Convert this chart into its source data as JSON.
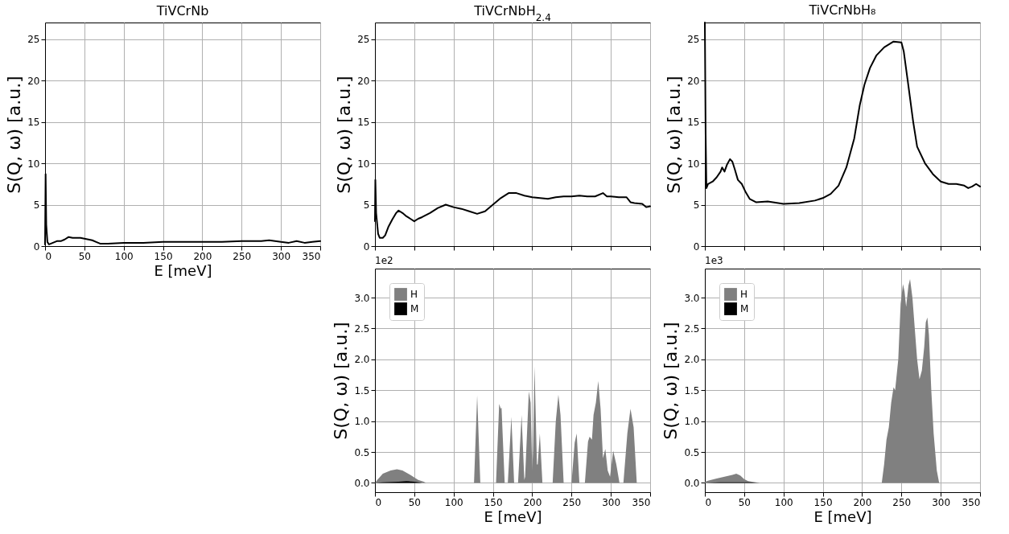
{
  "chart_data": [
    {
      "type": "line",
      "title": "TiVCrNb",
      "xlabel": "E [meV]",
      "ylabel": "S(Q, ω) [a.u.]",
      "xlim": [
        0,
        350
      ],
      "ylim": [
        0,
        27
      ],
      "xticks": [
        0,
        50,
        100,
        150,
        200,
        250,
        300,
        350
      ],
      "yticks": [
        0,
        5,
        10,
        15,
        20,
        25
      ],
      "grid": true,
      "series": [
        {
          "color": "#000000",
          "x": [
            0,
            0.7,
            1.5,
            3,
            5,
            10,
            15,
            20,
            25,
            30,
            35,
            40,
            45,
            50,
            55,
            60,
            65,
            70,
            80,
            100,
            125,
            150,
            175,
            200,
            225,
            250,
            275,
            285,
            300,
            310,
            320,
            330,
            340,
            350
          ],
          "values": [
            0.2,
            8.7,
            2.6,
            0.5,
            0.2,
            0.4,
            0.6,
            0.6,
            0.8,
            1.1,
            1.0,
            1.0,
            1.0,
            0.9,
            0.8,
            0.7,
            0.5,
            0.3,
            0.3,
            0.4,
            0.4,
            0.5,
            0.5,
            0.5,
            0.5,
            0.6,
            0.6,
            0.7,
            0.5,
            0.4,
            0.6,
            0.4,
            0.5,
            0.6
          ]
        }
      ]
    },
    {
      "type": "line",
      "title": "TiVCrNbH$_{2.4}$",
      "ylabel": "S(Q, ω) [a.u.]",
      "xlim": [
        0,
        350
      ],
      "ylim": [
        0,
        27
      ],
      "xticks": [
        0,
        50,
        100,
        150,
        200,
        250,
        300,
        350
      ],
      "yticks": [
        0,
        5,
        10,
        15,
        20,
        25
      ],
      "grid": true,
      "tick_labels": "y",
      "series": [
        {
          "color": "#000000",
          "x": [
            0,
            0.5,
            1.5,
            4,
            6,
            10,
            13,
            17,
            22,
            27,
            30,
            35,
            40,
            45,
            50,
            55,
            60,
            70,
            80,
            90,
            100,
            110,
            120,
            130,
            140,
            150,
            160,
            170,
            180,
            190,
            200,
            210,
            220,
            230,
            240,
            250,
            260,
            270,
            280,
            290,
            295,
            300,
            310,
            320,
            325,
            330,
            340,
            345,
            350
          ],
          "values": [
            3,
            8,
            4,
            1.5,
            1.0,
            1.0,
            1.3,
            2.3,
            3.2,
            4.0,
            4.3,
            4.0,
            3.6,
            3.3,
            3.0,
            3.3,
            3.5,
            4.0,
            4.6,
            5.0,
            4.7,
            4.5,
            4.2,
            3.9,
            4.2,
            5.0,
            5.8,
            6.4,
            6.4,
            6.1,
            5.9,
            5.8,
            5.7,
            5.9,
            6.0,
            6.0,
            6.1,
            6.0,
            6.0,
            6.4,
            6.0,
            6.0,
            5.9,
            5.9,
            5.3,
            5.2,
            5.1,
            4.7,
            4.8
          ]
        }
      ]
    },
    {
      "type": "line",
      "title": "TiVCrNbH₈",
      "ylabel": "S(Q, ω) [a.u.]",
      "xlim": [
        0,
        350
      ],
      "ylim": [
        0,
        27
      ],
      "xticks": [
        0,
        50,
        100,
        150,
        200,
        250,
        300,
        350
      ],
      "yticks": [
        0,
        5,
        10,
        15,
        20,
        25
      ],
      "grid": true,
      "tick_labels": "y",
      "series": [
        {
          "color": "#000000",
          "x": [
            0,
            1,
            2,
            4,
            10,
            15,
            20,
            22,
            25,
            28,
            32,
            35,
            38,
            42,
            47,
            52,
            57,
            65,
            80,
            100,
            120,
            140,
            150,
            160,
            170,
            180,
            190,
            197,
            203,
            210,
            218,
            228,
            240,
            250,
            253,
            258,
            265,
            270,
            280,
            290,
            300,
            310,
            320,
            330,
            335,
            340,
            345,
            350
          ],
          "values": [
            27,
            13.5,
            7,
            7.5,
            7.8,
            8.3,
            9.0,
            9.5,
            9.0,
            9.8,
            10.5,
            10.2,
            9.3,
            8.0,
            7.5,
            6.5,
            5.7,
            5.3,
            5.4,
            5.1,
            5.2,
            5.5,
            5.8,
            6.3,
            7.3,
            9.5,
            13.0,
            17.0,
            19.5,
            21.5,
            23.0,
            24.0,
            24.7,
            24.6,
            23.5,
            20.0,
            15.0,
            12.0,
            10.0,
            8.7,
            7.8,
            7.5,
            7.5,
            7.3,
            7.0,
            7.2,
            7.5,
            7.2
          ]
        }
      ]
    },
    {
      "type": "area",
      "xlabel": "E [meV]",
      "ylabel": "S(Q, ω) [a.u.]",
      "xlim": [
        0,
        350
      ],
      "ylim": [
        -0.15,
        3.47
      ],
      "xticks": [
        0,
        50,
        100,
        150,
        200,
        250,
        300,
        350
      ],
      "yticks": [
        {
          "value": 0,
          "label": "0.0"
        },
        0.5,
        {
          "value": 1,
          "label": "1.0"
        },
        1.5,
        {
          "value": 2,
          "label": "2.0"
        },
        2.5,
        {
          "value": 3,
          "label": "3.0"
        }
      ],
      "grid": true,
      "legend": "top left",
      "annotations": [
        "1e2"
      ],
      "series": [
        {
          "name": "H",
          "color": "#808080",
          "x": [
            0,
            3,
            10,
            20,
            28,
            35,
            45,
            55,
            62,
            65,
            126,
            130,
            134,
            154,
            158,
            160,
            161,
            165,
            169,
            173.5,
            177,
            182,
            186.5,
            190,
            191,
            195.7,
            198,
            200,
            201,
            203,
            206,
            207,
            209.7,
            213,
            226,
            230,
            233.3,
            236,
            240,
            250,
            254,
            256.6,
            260,
            267,
            271,
            273,
            276,
            278,
            281,
            284,
            287,
            290,
            293,
            296,
            299,
            303,
            307,
            311,
            316,
            321,
            325,
            329,
            333,
            350
          ],
          "values": [
            0,
            0.05,
            0.15,
            0.2,
            0.22,
            0.2,
            0.13,
            0.05,
            0.02,
            0,
            0,
            1.42,
            0,
            0,
            1.28,
            1.2,
            1.22,
            0,
            0,
            1.07,
            0,
            0,
            1.1,
            0.05,
            0.1,
            1.48,
            1.3,
            0.2,
            0.5,
            1.88,
            0.3,
            0.3,
            0.8,
            0,
            0,
            1.0,
            1.43,
            1.1,
            0,
            0,
            0.65,
            0.8,
            0,
            0,
            0.67,
            0.75,
            0.7,
            1.1,
            1.3,
            1.65,
            1.2,
            0.4,
            0.55,
            0.2,
            0.1,
            0.52,
            0.3,
            0,
            0,
            0.8,
            1.2,
            0.9,
            0,
            0
          ]
        },
        {
          "name": "M",
          "color": "#000000",
          "x": [
            0,
            10,
            30,
            40,
            50,
            60,
            350
          ],
          "values": [
            0,
            0.01,
            0.02,
            0.03,
            0.02,
            0,
            0
          ]
        }
      ]
    },
    {
      "type": "area",
      "xlabel": "E [meV]",
      "ylabel": "S(Q, ω) [a.u.]",
      "xlim": [
        0,
        350
      ],
      "ylim": [
        -0.15,
        3.47
      ],
      "xticks": [
        0,
        50,
        100,
        150,
        200,
        250,
        300,
        350
      ],
      "yticks": [
        {
          "value": 0,
          "label": "0.0"
        },
        0.5,
        {
          "value": 1,
          "label": "1.0"
        },
        1.5,
        {
          "value": 2,
          "label": "2.0"
        },
        2.5,
        {
          "value": 3,
          "label": "3.0"
        }
      ],
      "grid": true,
      "legend": "top left",
      "annotations": [
        "1e3"
      ],
      "series": [
        {
          "name": "H",
          "color": "#808080",
          "x": [
            0,
            5,
            15,
            25,
            35,
            40,
            45,
            50,
            55,
            65,
            70,
            225,
            228,
            231,
            234,
            237,
            240,
            242,
            246,
            249,
            252,
            254,
            256,
            259,
            261,
            264,
            267,
            270,
            273,
            276,
            279,
            281,
            283,
            285,
            288,
            291,
            295,
            298,
            350
          ],
          "values": [
            0.02,
            0.04,
            0.07,
            0.1,
            0.13,
            0.15,
            0.12,
            0.06,
            0.03,
            0.01,
            0,
            0,
            0.3,
            0.7,
            0.9,
            1.3,
            1.55,
            1.5,
            2.0,
            2.9,
            3.22,
            3.1,
            2.85,
            3.2,
            3.3,
            3.0,
            2.5,
            2.0,
            1.68,
            1.82,
            2.2,
            2.6,
            2.68,
            2.4,
            1.5,
            0.8,
            0.2,
            0,
            0
          ]
        },
        {
          "name": "M",
          "color": "#000000",
          "x": [
            0,
            20,
            40,
            55,
            70,
            350
          ],
          "values": [
            0,
            0.01,
            0.01,
            0.01,
            0,
            0
          ]
        }
      ]
    }
  ]
}
